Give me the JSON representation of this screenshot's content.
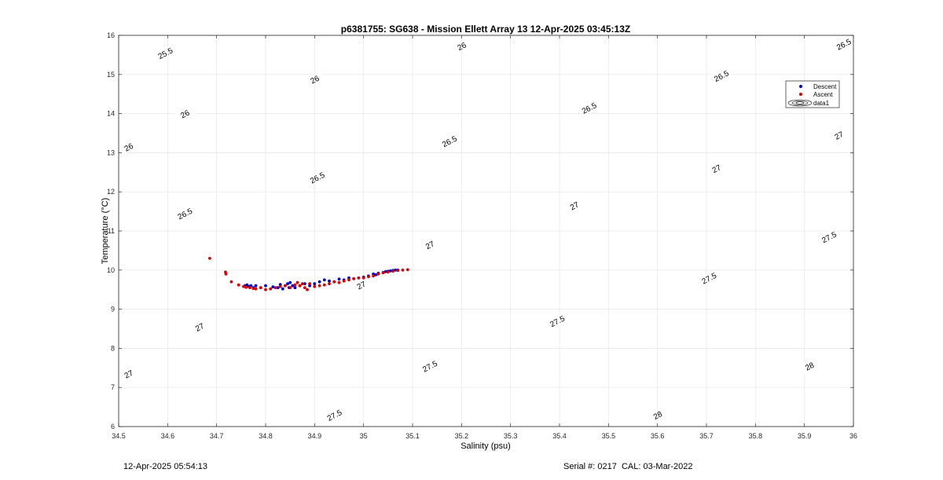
{
  "chart_data": {
    "type": "scatter",
    "title": "p6381755: SG638 - Mission Ellett Array 13 12-Apr-2025 03:45:13Z",
    "xlabel": "Salinity (psu)",
    "ylabel": "Temperature (°C)",
    "xlim": [
      34.5,
      36
    ],
    "ylim": [
      6,
      16
    ],
    "xticks": [
      34.5,
      34.6,
      34.7,
      34.8,
      34.9,
      35,
      35.1,
      35.2,
      35.3,
      35.4,
      35.5,
      35.6,
      35.7,
      35.8,
      35.9,
      36
    ],
    "xtick_labels": [
      "34.5",
      "34.6",
      "34.7",
      "34.8",
      "34.9",
      "35",
      "35.1",
      "35.2",
      "35.3",
      "35.4",
      "35.5",
      "35.6",
      "35.7",
      "35.8",
      "35.9",
      "36"
    ],
    "yticks": [
      6,
      7,
      8,
      9,
      10,
      11,
      12,
      13,
      14,
      15,
      16
    ],
    "ytick_labels": [
      "6",
      "7",
      "8",
      "9",
      "10",
      "11",
      "12",
      "13",
      "14",
      "15",
      "16"
    ],
    "grid": true,
    "legend_position": "top-right",
    "series": [
      {
        "name": "Descent",
        "color": "#0000cc",
        "x": [
          34.758,
          34.762,
          34.766,
          34.77,
          34.775,
          34.78,
          34.79,
          34.8,
          34.815,
          34.825,
          34.83,
          34.835,
          34.84,
          34.845,
          34.848,
          34.85,
          34.855,
          34.86,
          34.87,
          34.88,
          34.89,
          34.9,
          34.91,
          34.92,
          34.93,
          34.94,
          34.95,
          34.96,
          34.97,
          34.98,
          34.99,
          35.0,
          35.01,
          35.02,
          35.025,
          35.03,
          35.04,
          35.045,
          35.05,
          35.055,
          35.06,
          35.065,
          35.07
        ],
        "y": [
          9.6,
          9.62,
          9.58,
          9.6,
          9.55,
          9.6,
          9.55,
          9.6,
          9.57,
          9.55,
          9.63,
          9.52,
          9.6,
          9.65,
          9.55,
          9.68,
          9.6,
          9.55,
          9.6,
          9.65,
          9.6,
          9.65,
          9.7,
          9.75,
          9.72,
          9.7,
          9.77,
          9.75,
          9.8,
          9.78,
          9.8,
          9.82,
          9.85,
          9.9,
          9.88,
          9.92,
          9.94,
          9.96,
          9.97,
          9.98,
          9.99,
          10.0,
          10.0
        ]
      },
      {
        "name": "Ascent",
        "color": "#dd0000",
        "x": [
          34.686,
          34.718,
          34.719,
          34.73,
          34.745,
          34.755,
          34.76,
          34.768,
          34.775,
          34.78,
          34.79,
          34.8,
          34.81,
          34.82,
          34.83,
          34.84,
          34.85,
          34.86,
          34.865,
          34.87,
          34.875,
          34.88,
          34.885,
          34.89,
          34.9,
          34.91,
          34.92,
          34.93,
          34.94,
          34.95,
          34.96,
          34.97,
          34.98,
          34.99,
          35.0,
          35.01,
          35.02,
          35.03,
          35.04,
          35.05,
          35.06,
          35.07,
          35.08,
          35.09
        ],
        "y": [
          10.3,
          9.95,
          9.9,
          9.7,
          9.62,
          9.58,
          9.56,
          9.55,
          9.53,
          9.52,
          9.55,
          9.5,
          9.52,
          9.55,
          9.58,
          9.6,
          9.55,
          9.62,
          9.68,
          9.6,
          9.65,
          9.55,
          9.5,
          9.65,
          9.58,
          9.6,
          9.62,
          9.65,
          9.7,
          9.68,
          9.72,
          9.75,
          9.78,
          9.8,
          9.8,
          9.83,
          9.85,
          9.9,
          9.93,
          9.95,
          9.97,
          9.99,
          10.0,
          10.01
        ]
      }
    ],
    "contour_series_name": "data1",
    "contours": [
      {
        "label": "25.5",
        "a": 22.16,
        "label_positions": [
          [
            34.595,
            15.55
          ]
        ]
      },
      {
        "label": "26",
        "a": 22.66,
        "label_positions": [
          [
            34.52,
            13.15
          ],
          [
            34.635,
            14.0
          ],
          [
            34.9,
            14.88
          ],
          [
            35.2,
            15.73
          ]
        ]
      },
      {
        "label": "26.5",
        "a": 23.16,
        "label_positions": [
          [
            34.635,
            11.45
          ],
          [
            34.905,
            12.37
          ],
          [
            35.175,
            13.3
          ],
          [
            35.46,
            14.15
          ],
          [
            35.73,
            14.97
          ],
          [
            35.98,
            15.78
          ]
        ]
      },
      {
        "label": "27",
        "a": 23.66,
        "label_positions": [
          [
            34.52,
            7.35
          ],
          [
            34.665,
            8.55
          ],
          [
            34.995,
            9.62
          ],
          [
            35.135,
            10.65
          ],
          [
            35.43,
            11.65
          ],
          [
            35.72,
            12.6
          ],
          [
            35.97,
            13.45
          ]
        ]
      },
      {
        "label": "27.5",
        "a": 24.16,
        "label_positions": [
          [
            34.94,
            6.3
          ],
          [
            35.135,
            7.55
          ],
          [
            35.395,
            8.7
          ],
          [
            35.705,
            9.8
          ],
          [
            35.95,
            10.85
          ]
        ]
      },
      {
        "label": "28",
        "a": 24.66,
        "label_positions": [
          [
            35.6,
            6.3
          ],
          [
            35.91,
            7.55
          ]
        ]
      }
    ]
  },
  "footer": {
    "left_timestamp": "12-Apr-2025 05:54:13",
    "serial_cal": "Serial #: 0217  CAL: 03-Mar-2022"
  }
}
